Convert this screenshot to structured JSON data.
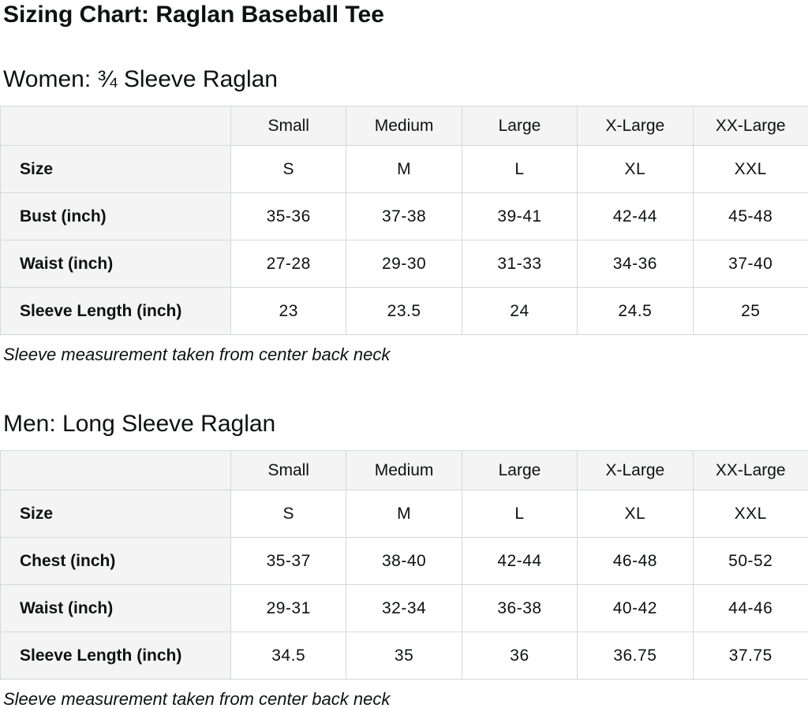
{
  "page": {
    "title": "Sizing Chart: Raglan Baseball Tee"
  },
  "colors": {
    "text": "#0f1111",
    "table_header_bg": "#f4f4f4",
    "table_border": "#d5d9d9",
    "cell_bg": "#ffffff"
  },
  "sections": [
    {
      "heading": "Women: ¾ Sleeve Raglan",
      "columns": [
        "Small",
        "Medium",
        "Large",
        "X-Large",
        "XX-Large"
      ],
      "rows": [
        {
          "label": "Size",
          "values": [
            "S",
            "M",
            "L",
            "XL",
            "XXL"
          ]
        },
        {
          "label": "Bust (inch)",
          "values": [
            "35-36",
            "37-38",
            "39-41",
            "42-44",
            "45-48"
          ]
        },
        {
          "label": "Waist (inch)",
          "values": [
            "27-28",
            "29-30",
            "31-33",
            "34-36",
            "37-40"
          ]
        },
        {
          "label": "Sleeve Length (inch)",
          "values": [
            "23",
            "23.5",
            "24",
            "24.5",
            "25"
          ]
        }
      ],
      "note": "Sleeve measurement taken from center back neck"
    },
    {
      "heading": "Men: Long Sleeve Raglan",
      "columns": [
        "Small",
        "Medium",
        "Large",
        "X-Large",
        "XX-Large"
      ],
      "rows": [
        {
          "label": "Size",
          "values": [
            "S",
            "M",
            "L",
            "XL",
            "XXL"
          ]
        },
        {
          "label": "Chest (inch)",
          "values": [
            "35-37",
            "38-40",
            "42-44",
            "46-48",
            "50-52"
          ]
        },
        {
          "label": "Waist (inch)",
          "values": [
            "29-31",
            "32-34",
            "36-38",
            "40-42",
            "44-46"
          ]
        },
        {
          "label": "Sleeve Length (inch)",
          "values": [
            "34.5",
            "35",
            "36",
            "36.75",
            "37.75"
          ]
        }
      ],
      "note": "Sleeve measurement taken from center back neck"
    }
  ]
}
